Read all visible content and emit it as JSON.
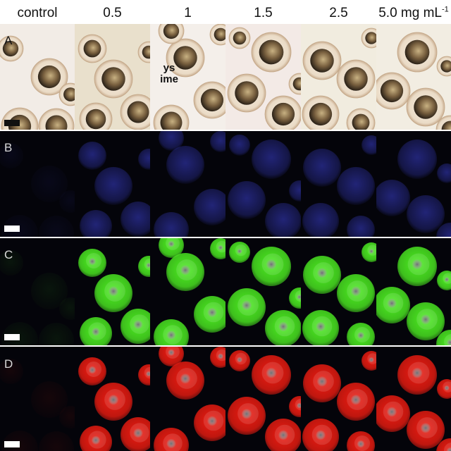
{
  "columns": [
    {
      "label": "control"
    },
    {
      "label": "0.5"
    },
    {
      "label": "1"
    },
    {
      "label": "1.5"
    },
    {
      "label": "2.5"
    },
    {
      "label_main": "5.0 mg mL",
      "label_sup": "-1"
    }
  ],
  "rows": [
    {
      "label": "A",
      "mode": "brightfield",
      "label_color": "#111111",
      "scalebar_color": "#111111"
    },
    {
      "label": "B",
      "mode": "fluorescence",
      "label_color": "#d8d8d8",
      "scalebar_color": "#ffffff",
      "tint": "#3a3fd0"
    },
    {
      "label": "C",
      "mode": "fluorescence",
      "label_color": "#d8d8d8",
      "scalebar_color": "#ffffff",
      "tint": "#48e020"
    },
    {
      "label": "D",
      "mode": "fluorescence",
      "label_color": "#d8d8d8",
      "scalebar_color": "#ffffff",
      "tint": "#e01a10"
    }
  ],
  "annotations": {
    "ys": "ys",
    "ime": "ime"
  }
}
